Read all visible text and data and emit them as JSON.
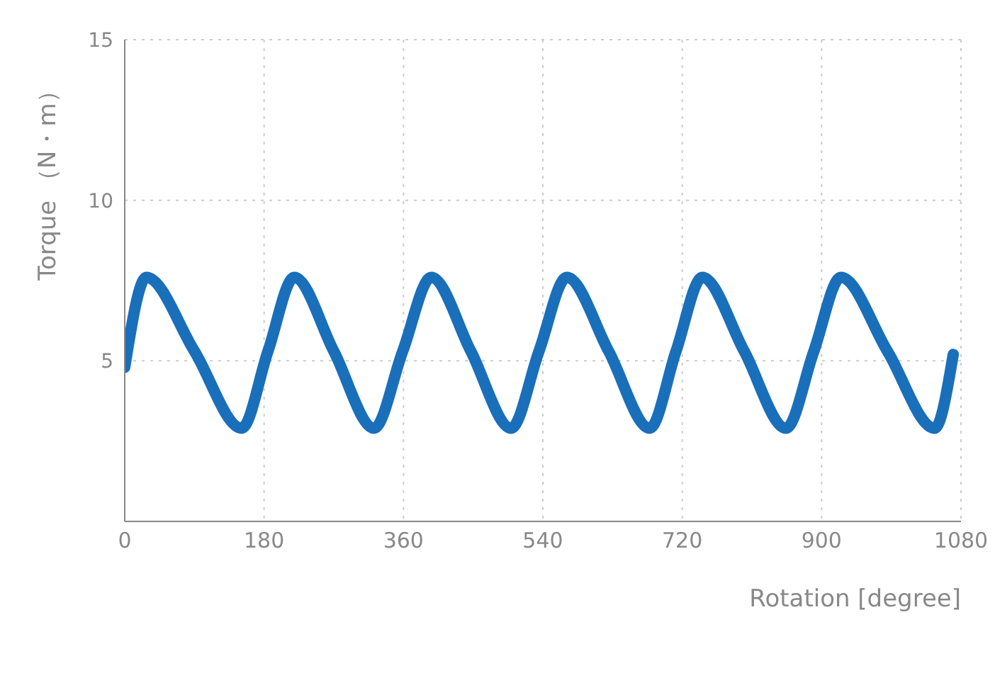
{
  "chart_data": {
    "type": "line",
    "xlabel": "Rotation [degree]",
    "ylabel": "Torque （N・m）",
    "series": [
      {
        "color": "#1a6fba",
        "x": [
          0,
          28,
          90,
          151,
          185,
          219,
          270,
          322,
          359,
          396,
          447,
          499,
          535,
          571,
          625,
          678,
          712,
          746,
          800,
          854,
          890,
          925,
          985,
          1046,
          1070
        ],
        "values": [
          4.8,
          7.6,
          5.3,
          2.9,
          5.3,
          7.6,
          5.3,
          2.9,
          5.3,
          7.6,
          5.3,
          2.9,
          5.3,
          7.6,
          5.3,
          2.9,
          5.3,
          7.6,
          5.3,
          2.9,
          5.3,
          7.6,
          5.3,
          2.9,
          5.2
        ]
      }
    ],
    "xlim": [
      0,
      1080
    ],
    "ylim": [
      0,
      15
    ],
    "xticks": [
      0,
      180,
      360,
      540,
      720,
      900,
      1080
    ],
    "yticks": [
      5,
      10,
      15
    ],
    "grid": true,
    "legend": false,
    "marker": "none",
    "line_style": "solid"
  }
}
